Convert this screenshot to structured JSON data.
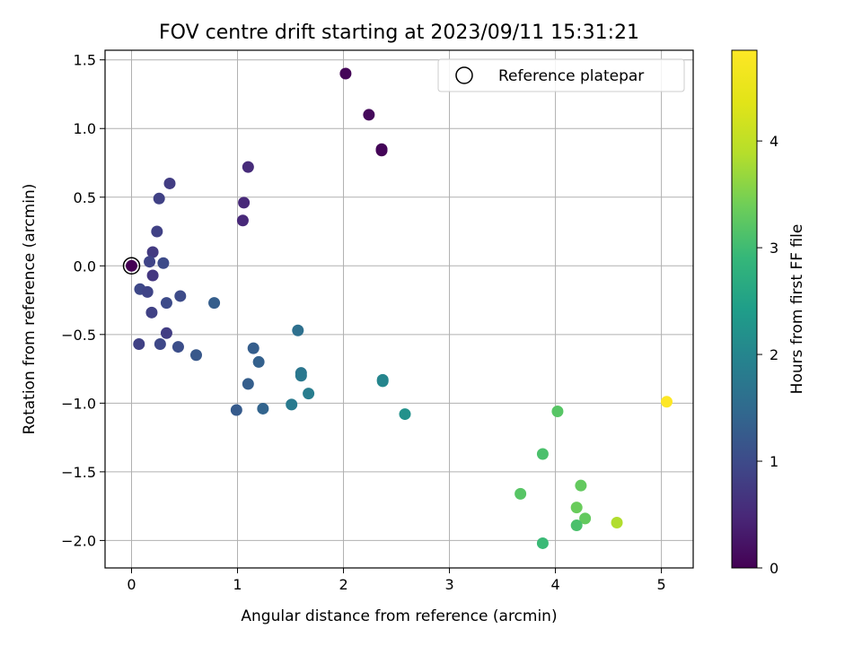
{
  "chart_data": {
    "type": "scatter",
    "title": "FOV centre drift starting at 2023/09/11 15:31:21",
    "xlabel": "Angular distance from reference (arcmin)",
    "ylabel": "Rotation from reference (arcmin)",
    "xlim": [
      -0.25,
      5.3
    ],
    "ylim": [
      -2.2,
      1.57
    ],
    "xticks": [
      0,
      1,
      2,
      3,
      4,
      5
    ],
    "yticks": [
      1.5,
      1.0,
      0.5,
      0.0,
      -0.5,
      -1.0,
      -1.5,
      -2.0
    ],
    "xtick_labels": [
      "0",
      "1",
      "2",
      "3",
      "4",
      "5"
    ],
    "ytick_labels": [
      "1.5",
      "1.0",
      "0.5",
      "0.0",
      "−0.5",
      "−1.0",
      "−1.5",
      "−2.0"
    ],
    "grid": true,
    "legend": {
      "position": "top-right",
      "label": "Reference platepar",
      "marker": "open-circle"
    },
    "reference_point": {
      "x": 0,
      "y": 0
    },
    "colorbar": {
      "label": "Hours from first FF file",
      "colormap": "viridis",
      "range": [
        0,
        4.85
      ],
      "ticks": [
        0,
        1,
        2,
        3,
        4
      ],
      "tick_labels": [
        "0",
        "1",
        "2",
        "3",
        "4"
      ]
    },
    "points": [
      {
        "x": 2.02,
        "y": 1.4,
        "c": 0.05
      },
      {
        "x": 2.24,
        "y": 1.1,
        "c": 0.1
      },
      {
        "x": 2.36,
        "y": 0.84,
        "c": 0.0
      },
      {
        "x": 2.36,
        "y": 0.85,
        "c": 0.05
      },
      {
        "x": 1.1,
        "y": 0.72,
        "c": 0.55
      },
      {
        "x": 1.06,
        "y": 0.46,
        "c": 0.5
      },
      {
        "x": 1.05,
        "y": 0.33,
        "c": 0.5
      },
      {
        "x": 0.36,
        "y": 0.6,
        "c": 0.8
      },
      {
        "x": 0.26,
        "y": 0.49,
        "c": 0.85
      },
      {
        "x": 0.24,
        "y": 0.25,
        "c": 0.85
      },
      {
        "x": 0.2,
        "y": 0.1,
        "c": 0.75
      },
      {
        "x": 0.17,
        "y": 0.03,
        "c": 0.9
      },
      {
        "x": 0.3,
        "y": 0.02,
        "c": 1.0
      },
      {
        "x": 0.2,
        "y": -0.07,
        "c": 0.7
      },
      {
        "x": 0.0,
        "y": 0.0,
        "c": 0.0
      },
      {
        "x": 0.08,
        "y": -0.17,
        "c": 0.95
      },
      {
        "x": 0.15,
        "y": -0.19,
        "c": 0.9
      },
      {
        "x": 0.33,
        "y": -0.27,
        "c": 1.0
      },
      {
        "x": 0.46,
        "y": -0.22,
        "c": 1.0
      },
      {
        "x": 0.19,
        "y": -0.34,
        "c": 0.85
      },
      {
        "x": 0.78,
        "y": -0.27,
        "c": 1.3
      },
      {
        "x": 0.33,
        "y": -0.49,
        "c": 0.8
      },
      {
        "x": 0.07,
        "y": -0.57,
        "c": 0.85
      },
      {
        "x": 0.27,
        "y": -0.57,
        "c": 0.95
      },
      {
        "x": 0.44,
        "y": -0.59,
        "c": 1.05
      },
      {
        "x": 0.61,
        "y": -0.65,
        "c": 1.2
      },
      {
        "x": 1.15,
        "y": -0.6,
        "c": 1.3
      },
      {
        "x": 1.2,
        "y": -0.7,
        "c": 1.35
      },
      {
        "x": 1.1,
        "y": -0.86,
        "c": 1.3
      },
      {
        "x": 0.99,
        "y": -1.05,
        "c": 1.25
      },
      {
        "x": 1.24,
        "y": -1.04,
        "c": 1.4
      },
      {
        "x": 1.57,
        "y": -0.47,
        "c": 1.6
      },
      {
        "x": 1.6,
        "y": -0.78,
        "c": 1.7
      },
      {
        "x": 1.6,
        "y": -0.8,
        "c": 1.75
      },
      {
        "x": 1.67,
        "y": -0.93,
        "c": 1.85
      },
      {
        "x": 1.51,
        "y": -1.01,
        "c": 1.8
      },
      {
        "x": 2.37,
        "y": -0.84,
        "c": 2.05
      },
      {
        "x": 2.37,
        "y": -0.83,
        "c": 2.0
      },
      {
        "x": 2.58,
        "y": -1.08,
        "c": 2.2
      },
      {
        "x": 4.02,
        "y": -1.06,
        "c": 3.2
      },
      {
        "x": 3.88,
        "y": -1.37,
        "c": 3.1
      },
      {
        "x": 3.67,
        "y": -1.66,
        "c": 3.2
      },
      {
        "x": 4.24,
        "y": -1.6,
        "c": 3.3
      },
      {
        "x": 4.2,
        "y": -1.76,
        "c": 3.35
      },
      {
        "x": 4.28,
        "y": -1.84,
        "c": 3.3
      },
      {
        "x": 4.2,
        "y": -1.89,
        "c": 3.1
      },
      {
        "x": 3.88,
        "y": -2.02,
        "c": 2.95
      },
      {
        "x": 4.58,
        "y": -1.87,
        "c": 3.85
      },
      {
        "x": 5.05,
        "y": -0.99,
        "c": 4.85
      }
    ]
  }
}
